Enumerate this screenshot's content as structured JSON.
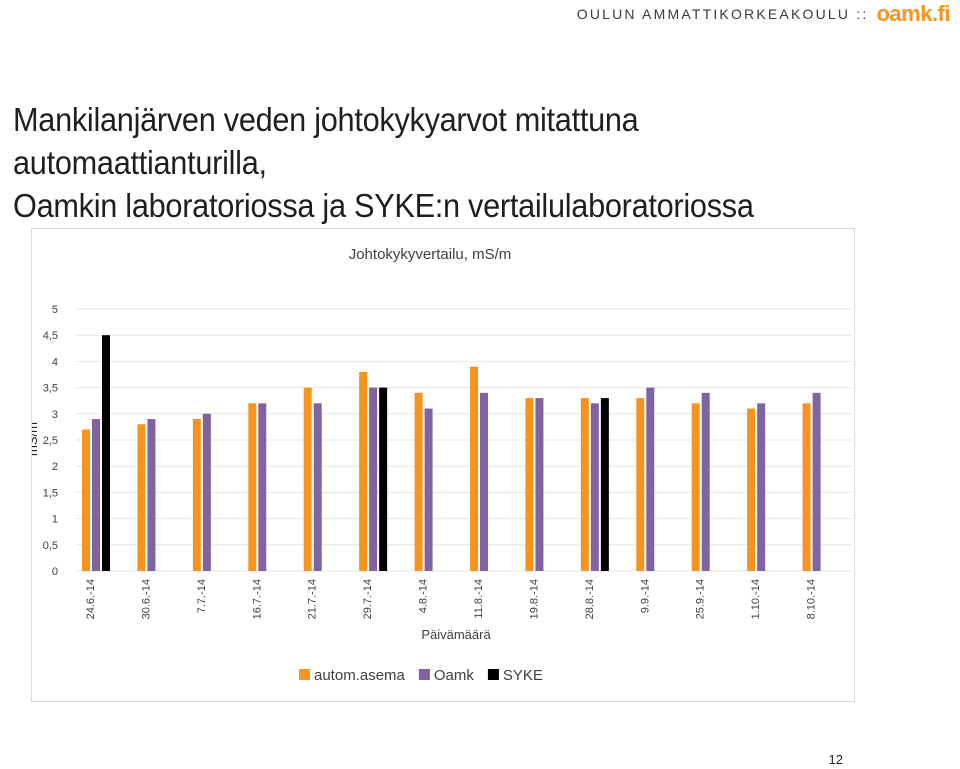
{
  "header": {
    "organization": "OULUN AMMATTIKORKEAKOULU ::",
    "logo_text": "oamk.fi"
  },
  "slide": {
    "title_line1": "Mankilanjärven veden johtokykyarvot mitattuna automaattianturilla,",
    "title_line2": "Oamkin laboratoriossa ja SYKE:n vertailulaboratoriossa",
    "page_number": "12"
  },
  "chart_data": {
    "type": "bar",
    "title": "Johtokykyvertailu, mS/m",
    "xlabel": "Päivämäärä",
    "ylabel": "mS/m",
    "ylim": [
      0,
      5
    ],
    "yticks": [
      "0",
      "0,5",
      "1",
      "1,5",
      "2",
      "2,5",
      "3",
      "3,5",
      "4",
      "4,5",
      "5"
    ],
    "categories": [
      "24.6.-14",
      "30.6.-14",
      "7.7.-14",
      "16.7.-14",
      "21.7.-14",
      "29.7.-14",
      "4.8.-14",
      "11.8.-14",
      "19.8.-14",
      "28.8.-14",
      "9.9.-14",
      "25.9.-14",
      "1.10.-14",
      "8.10.-14"
    ],
    "series": [
      {
        "name": "autom.asema",
        "color": "#f7941d",
        "values": [
          2.7,
          2.8,
          2.9,
          3.2,
          3.5,
          3.8,
          3.4,
          3.9,
          3.3,
          3.3,
          3.3,
          3.2,
          3.1,
          3.2
        ]
      },
      {
        "name": "Oamk",
        "color": "#8064a2",
        "values": [
          2.9,
          2.9,
          3.0,
          3.2,
          3.2,
          3.5,
          3.1,
          3.4,
          3.3,
          3.2,
          3.5,
          3.4,
          3.2,
          3.4
        ]
      },
      {
        "name": "SYKE",
        "color": "#000000",
        "values": [
          4.5,
          null,
          null,
          null,
          null,
          3.5,
          null,
          null,
          null,
          3.3,
          null,
          null,
          null,
          null
        ]
      }
    ],
    "grid": true,
    "legend_position": "bottom"
  }
}
